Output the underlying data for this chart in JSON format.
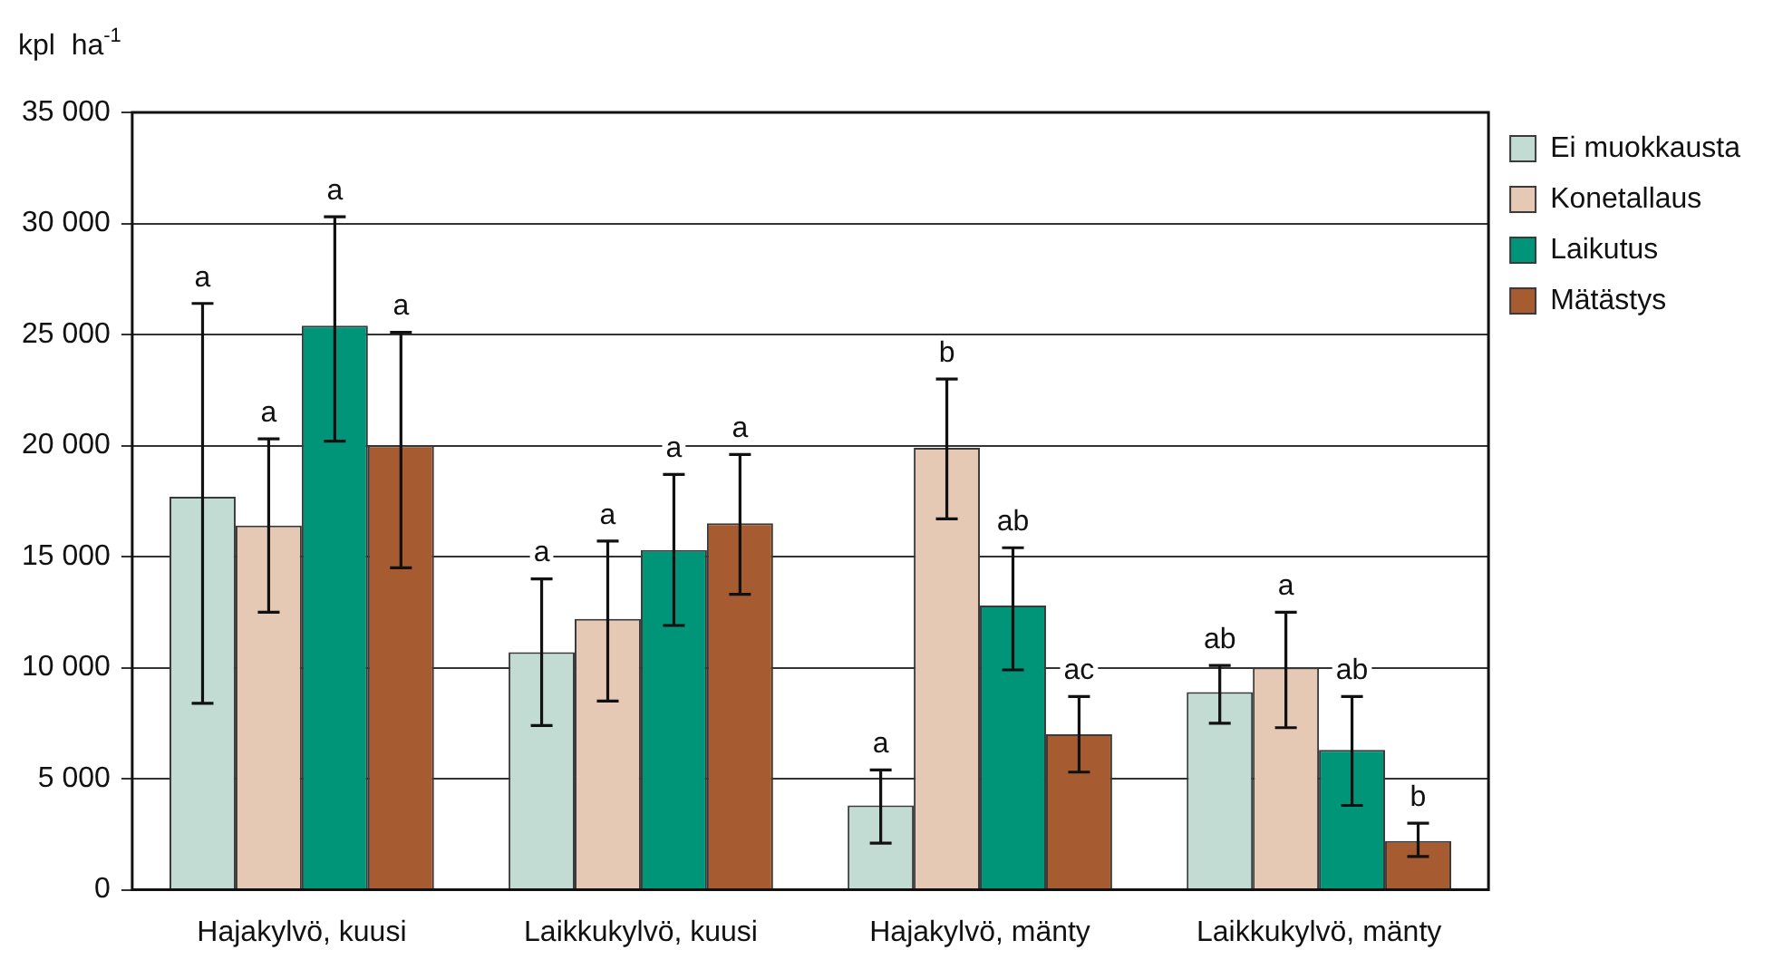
{
  "chart_data": {
    "type": "bar",
    "ylabel": "kpl  ha$^{-1}$",
    "categories": [
      "Hajakylvö, kuusi",
      "Laikkukylvö, kuusi",
      "Hajakylvö, mänty",
      "Laikkukylvö, mänty"
    ],
    "series": [
      {
        "name": "Ei muokkausta",
        "color": "#c2dcd4",
        "values": [
          17700,
          10700,
          3800,
          8900
        ],
        "errors": [
          [
            8400,
            26400
          ],
          [
            7400,
            14000
          ],
          [
            2100,
            5400
          ],
          [
            7500,
            10100
          ]
        ]
      },
      {
        "name": "Konetallaus",
        "color": "#e6c9b4",
        "values": [
          16400,
          12200,
          19900,
          10000
        ],
        "errors": [
          [
            12500,
            20300
          ],
          [
            8500,
            15700
          ],
          [
            16700,
            23000
          ],
          [
            7300,
            12500
          ]
        ]
      },
      {
        "name": "Laikutus",
        "color": "#009479",
        "values": [
          25400,
          15300,
          12800,
          6300
        ],
        "errors": [
          [
            20200,
            30300
          ],
          [
            11900,
            18700
          ],
          [
            9900,
            15400
          ],
          [
            3800,
            8700
          ]
        ]
      },
      {
        "name": "Mätästys",
        "color": "#a65c30",
        "values": [
          20000,
          16500,
          7000,
          2200
        ],
        "errors": [
          [
            14500,
            25100
          ],
          [
            13300,
            19600
          ],
          [
            5300,
            8700
          ],
          [
            1500,
            3000
          ]
        ]
      }
    ],
    "annotations": [
      "a",
      "a",
      "a",
      "ab",
      "a",
      "a",
      "b",
      "a",
      "a",
      "a",
      "ab",
      "ab",
      "a",
      "a",
      "ac",
      "b"
    ],
    "ylim": [
      0,
      35000
    ],
    "yticks": [
      0,
      {
        "value": 5000,
        "label": "5 000"
      },
      {
        "value": 10000,
        "label": "10 000"
      },
      {
        "value": 15000,
        "label": "15 000"
      },
      {
        "value": 20000,
        "label": "20 000"
      },
      {
        "value": 25000,
        "label": "25 000"
      },
      {
        "value": 30000,
        "label": "30 000"
      },
      {
        "value": 35000,
        "label": "35 000"
      }
    ],
    "grid": "y",
    "legend": "right"
  }
}
